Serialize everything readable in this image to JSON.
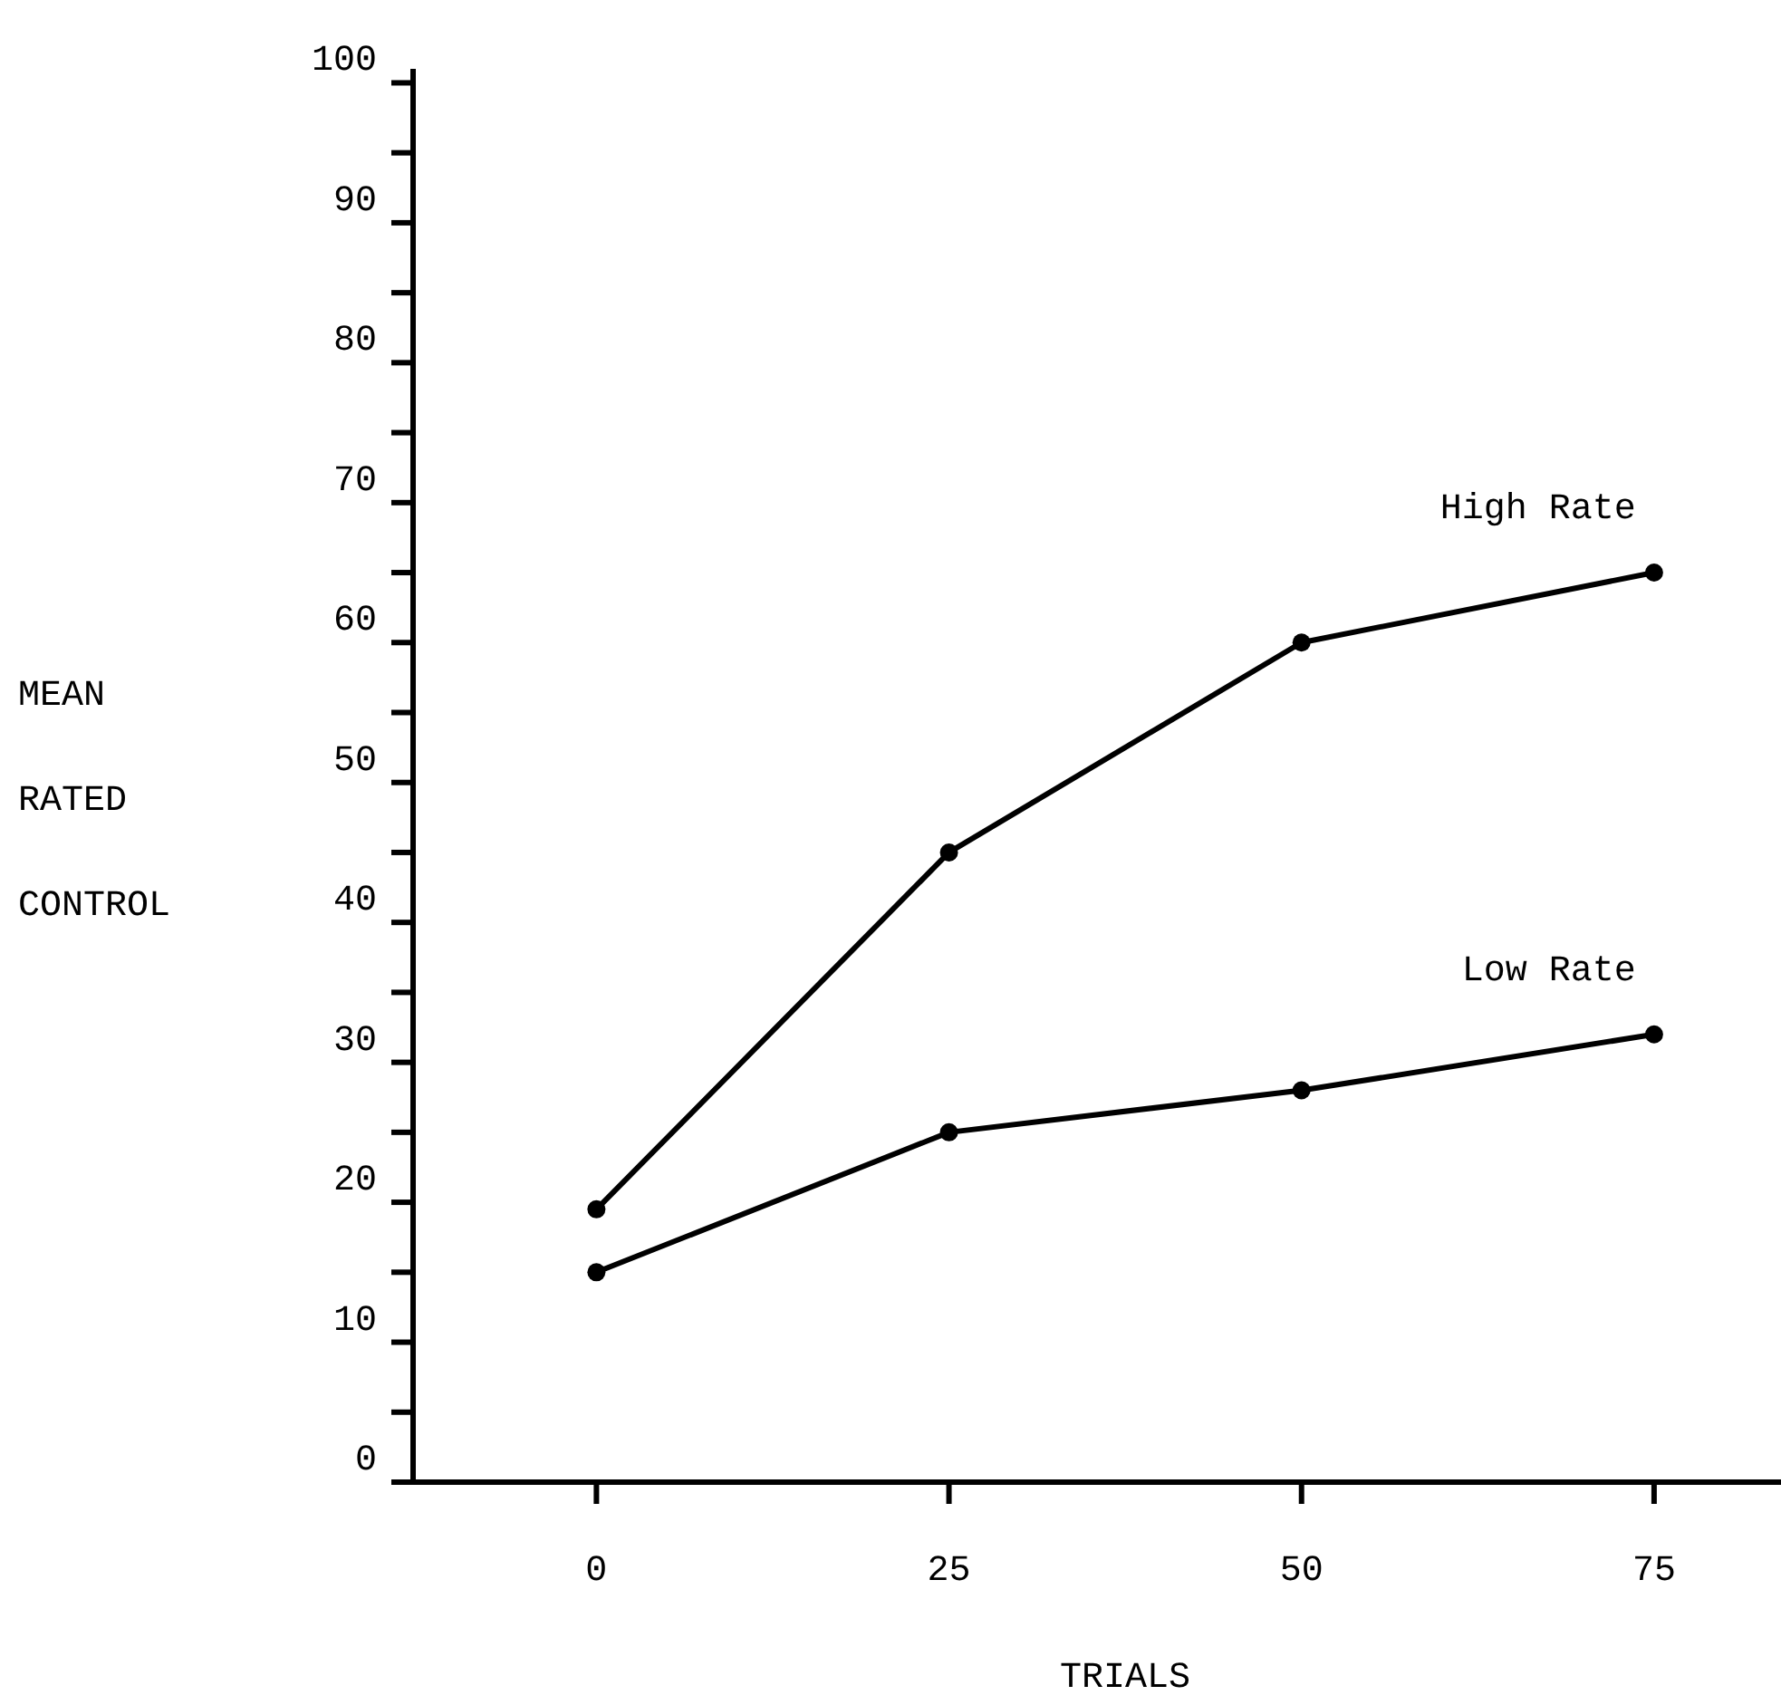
{
  "chart_data": {
    "type": "line",
    "xlabel": "TRIALS",
    "ylabel": "MEAN RATED CONTROL",
    "x": [
      0,
      25,
      50,
      75
    ],
    "series": [
      {
        "name": "High Rate",
        "color": "#000000",
        "values": [
          19.5,
          45,
          60,
          65
        ]
      },
      {
        "name": "Low Rate",
        "color": "#000000",
        "values": [
          15,
          25,
          28,
          32
        ]
      }
    ],
    "xlim": [
      -13,
      84
    ],
    "xticks": [
      0,
      25,
      50,
      75
    ],
    "ylim": [
      0,
      101
    ],
    "yticks": [
      0,
      {
        "value": 5,
        "label": null
      },
      10,
      {
        "value": 15,
        "label": null
      },
      20,
      {
        "value": 25,
        "label": null
      },
      30,
      {
        "value": 35,
        "label": null
      },
      40,
      {
        "value": 45,
        "label": null
      },
      50,
      {
        "value": 55,
        "label": null
      },
      60,
      {
        "value": 65,
        "label": null
      },
      70,
      {
        "value": 75,
        "label": null
      },
      80,
      {
        "value": 85,
        "label": null
      },
      90,
      {
        "value": 95,
        "label": null
      },
      100
    ],
    "grid": false,
    "marker": "circle",
    "line_style": "solid"
  }
}
